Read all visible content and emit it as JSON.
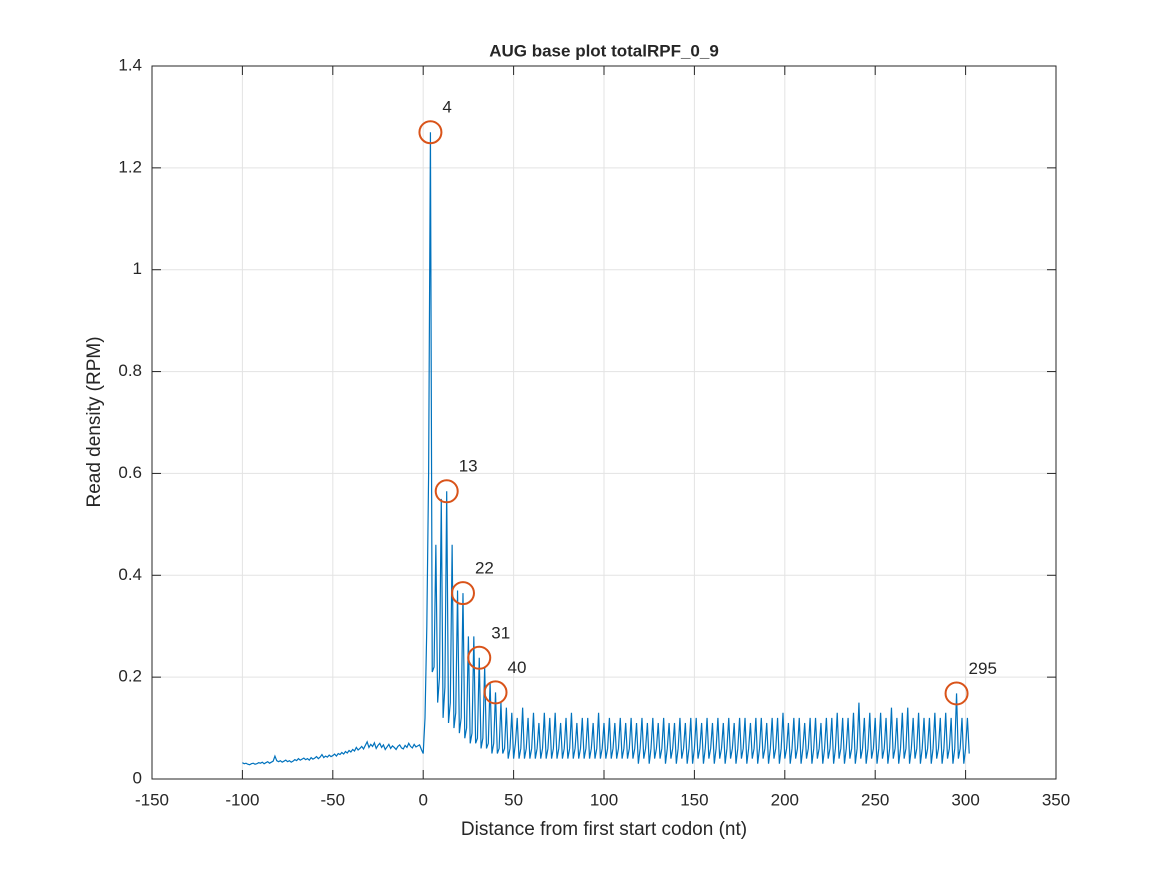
{
  "chart_data": {
    "type": "line",
    "title": "AUG base plot totalRPF_0_9",
    "xlabel": "Distance from first start codon (nt)",
    "ylabel": "Read density (RPM)",
    "xlim": [
      -150,
      350
    ],
    "xticks": [
      -150,
      -100,
      -50,
      0,
      50,
      100,
      150,
      200,
      250,
      300,
      350
    ],
    "ylim": [
      0,
      1.4
    ],
    "yticks": [
      0,
      0.2,
      0.4,
      0.6,
      0.8,
      1,
      1.2,
      1.4
    ],
    "grid": true,
    "series": [
      {
        "color": "#0072bd",
        "x": [
          -100,
          -99,
          -98,
          -97,
          -96,
          -95,
          -94,
          -93,
          -92,
          -91,
          -90,
          -89,
          -88,
          -87,
          -86,
          -85,
          -84,
          -83,
          -82,
          -81,
          -80,
          -79,
          -78,
          -77,
          -76,
          -75,
          -74,
          -73,
          -72,
          -71,
          -70,
          -69,
          -68,
          -67,
          -66,
          -65,
          -64,
          -63,
          -62,
          -61,
          -60,
          -59,
          -58,
          -57,
          -56,
          -55,
          -54,
          -53,
          -52,
          -51,
          -50,
          -49,
          -48,
          -47,
          -46,
          -45,
          -44,
          -43,
          -42,
          -41,
          -40,
          -39,
          -38,
          -37,
          -36,
          -35,
          -34,
          -33,
          -32,
          -31,
          -30,
          -29,
          -28,
          -27,
          -26,
          -25,
          -24,
          -23,
          -22,
          -21,
          -20,
          -19,
          -18,
          -17,
          -16,
          -15,
          -14,
          -13,
          -12,
          -11,
          -10,
          -9,
          -8,
          -7,
          -6,
          -5,
          -4,
          -3,
          -2,
          -1,
          0,
          1,
          2,
          3,
          4,
          5,
          6,
          7,
          8,
          9,
          10,
          11,
          12,
          13,
          14,
          15,
          16,
          17,
          18,
          19,
          20,
          21,
          22,
          23,
          24,
          25,
          26,
          27,
          28,
          29,
          30,
          31,
          32,
          33,
          34,
          35,
          36,
          37,
          38,
          39,
          40,
          41,
          42,
          43,
          44,
          45,
          46,
          47,
          48,
          49,
          50,
          51,
          52,
          53,
          54,
          55,
          56,
          57,
          58,
          59,
          60,
          61,
          62,
          63,
          64,
          65,
          66,
          67,
          68,
          69,
          70,
          71,
          72,
          73,
          74,
          75,
          76,
          77,
          78,
          79,
          80,
          81,
          82,
          83,
          84,
          85,
          86,
          87,
          88,
          89,
          90,
          91,
          92,
          93,
          94,
          95,
          96,
          97,
          98,
          99,
          100,
          101,
          102,
          103,
          104,
          105,
          106,
          107,
          108,
          109,
          110,
          111,
          112,
          113,
          114,
          115,
          116,
          117,
          118,
          119,
          120,
          121,
          122,
          123,
          124,
          125,
          126,
          127,
          128,
          129,
          130,
          131,
          132,
          133,
          134,
          135,
          136,
          137,
          138,
          139,
          140,
          141,
          142,
          143,
          144,
          145,
          146,
          147,
          148,
          149,
          150,
          151,
          152,
          153,
          154,
          155,
          156,
          157,
          158,
          159,
          160,
          161,
          162,
          163,
          164,
          165,
          166,
          167,
          168,
          169,
          170,
          171,
          172,
          173,
          174,
          175,
          176,
          177,
          178,
          179,
          180,
          181,
          182,
          183,
          184,
          185,
          186,
          187,
          188,
          189,
          190,
          191,
          192,
          193,
          194,
          195,
          196,
          197,
          198,
          199,
          200,
          201,
          202,
          203,
          204,
          205,
          206,
          207,
          208,
          209,
          210,
          211,
          212,
          213,
          214,
          215,
          216,
          217,
          218,
          219,
          220,
          221,
          222,
          223,
          224,
          225,
          226,
          227,
          228,
          229,
          230,
          231,
          232,
          233,
          234,
          235,
          236,
          237,
          238,
          239,
          240,
          241,
          242,
          243,
          244,
          245,
          246,
          247,
          248,
          249,
          250,
          251,
          252,
          253,
          254,
          255,
          256,
          257,
          258,
          259,
          260,
          261,
          262,
          263,
          264,
          265,
          266,
          267,
          268,
          269,
          270,
          271,
          272,
          273,
          274,
          275,
          276,
          277,
          278,
          279,
          280,
          281,
          282,
          283,
          284,
          285,
          286,
          287,
          288,
          289,
          290,
          291,
          292,
          293,
          294,
          295,
          296,
          297,
          298,
          299,
          300,
          301,
          302
        ],
        "values": [
          0.032,
          0.03,
          0.031,
          0.029,
          0.028,
          0.03,
          0.031,
          0.029,
          0.03,
          0.032,
          0.031,
          0.033,
          0.03,
          0.032,
          0.034,
          0.031,
          0.033,
          0.035,
          0.045,
          0.036,
          0.034,
          0.036,
          0.033,
          0.035,
          0.037,
          0.034,
          0.036,
          0.033,
          0.035,
          0.038,
          0.036,
          0.04,
          0.037,
          0.039,
          0.041,
          0.038,
          0.04,
          0.037,
          0.042,
          0.039,
          0.041,
          0.044,
          0.04,
          0.043,
          0.048,
          0.042,
          0.045,
          0.043,
          0.047,
          0.044,
          0.046,
          0.049,
          0.045,
          0.05,
          0.048,
          0.052,
          0.049,
          0.054,
          0.051,
          0.056,
          0.053,
          0.058,
          0.055,
          0.062,
          0.057,
          0.06,
          0.064,
          0.059,
          0.066,
          0.073,
          0.062,
          0.068,
          0.064,
          0.071,
          0.06,
          0.066,
          0.07,
          0.062,
          0.067,
          0.058,
          0.063,
          0.068,
          0.06,
          0.065,
          0.062,
          0.058,
          0.064,
          0.067,
          0.061,
          0.059,
          0.066,
          0.062,
          0.07,
          0.064,
          0.061,
          0.068,
          0.063,
          0.065,
          0.067,
          0.058,
          0.05,
          0.12,
          0.3,
          0.6,
          1.27,
          0.21,
          0.22,
          0.46,
          0.15,
          0.2,
          0.55,
          0.12,
          0.18,
          0.565,
          0.11,
          0.15,
          0.46,
          0.1,
          0.13,
          0.37,
          0.09,
          0.12,
          0.365,
          0.08,
          0.1,
          0.28,
          0.07,
          0.09,
          0.28,
          0.07,
          0.08,
          0.238,
          0.06,
          0.08,
          0.22,
          0.06,
          0.07,
          0.19,
          0.05,
          0.07,
          0.17,
          0.05,
          0.06,
          0.15,
          0.05,
          0.06,
          0.14,
          0.04,
          0.06,
          0.13,
          0.04,
          0.07,
          0.12,
          0.04,
          0.06,
          0.14,
          0.04,
          0.06,
          0.12,
          0.04,
          0.06,
          0.13,
          0.04,
          0.06,
          0.11,
          0.04,
          0.06,
          0.13,
          0.04,
          0.06,
          0.12,
          0.04,
          0.06,
          0.13,
          0.04,
          0.06,
          0.11,
          0.04,
          0.06,
          0.12,
          0.04,
          0.06,
          0.13,
          0.04,
          0.06,
          0.11,
          0.04,
          0.06,
          0.12,
          0.04,
          0.06,
          0.12,
          0.04,
          0.06,
          0.11,
          0.04,
          0.06,
          0.13,
          0.04,
          0.06,
          0.11,
          0.04,
          0.06,
          0.12,
          0.04,
          0.06,
          0.11,
          0.04,
          0.06,
          0.12,
          0.04,
          0.06,
          0.11,
          0.04,
          0.06,
          0.12,
          0.04,
          0.06,
          0.11,
          0.03,
          0.06,
          0.12,
          0.04,
          0.06,
          0.11,
          0.03,
          0.06,
          0.12,
          0.04,
          0.06,
          0.11,
          0.04,
          0.06,
          0.12,
          0.03,
          0.06,
          0.11,
          0.04,
          0.06,
          0.11,
          0.03,
          0.06,
          0.12,
          0.04,
          0.06,
          0.11,
          0.03,
          0.06,
          0.12,
          0.03,
          0.06,
          0.12,
          0.04,
          0.06,
          0.11,
          0.03,
          0.06,
          0.12,
          0.04,
          0.06,
          0.11,
          0.03,
          0.06,
          0.12,
          0.04,
          0.06,
          0.11,
          0.03,
          0.06,
          0.12,
          0.04,
          0.06,
          0.11,
          0.03,
          0.06,
          0.12,
          0.04,
          0.06,
          0.12,
          0.03,
          0.06,
          0.11,
          0.04,
          0.06,
          0.12,
          0.03,
          0.06,
          0.12,
          0.04,
          0.06,
          0.11,
          0.03,
          0.06,
          0.12,
          0.04,
          0.06,
          0.12,
          0.03,
          0.06,
          0.13,
          0.04,
          0.06,
          0.11,
          0.03,
          0.06,
          0.12,
          0.04,
          0.06,
          0.12,
          0.03,
          0.06,
          0.11,
          0.04,
          0.06,
          0.12,
          0.03,
          0.06,
          0.12,
          0.04,
          0.06,
          0.11,
          0.03,
          0.06,
          0.12,
          0.04,
          0.06,
          0.12,
          0.03,
          0.06,
          0.13,
          0.04,
          0.06,
          0.12,
          0.03,
          0.06,
          0.12,
          0.04,
          0.06,
          0.13,
          0.03,
          0.06,
          0.15,
          0.04,
          0.06,
          0.12,
          0.03,
          0.06,
          0.13,
          0.04,
          0.06,
          0.12,
          0.03,
          0.06,
          0.13,
          0.04,
          0.06,
          0.12,
          0.03,
          0.06,
          0.14,
          0.04,
          0.06,
          0.12,
          0.03,
          0.06,
          0.13,
          0.04,
          0.06,
          0.14,
          0.03,
          0.06,
          0.12,
          0.04,
          0.06,
          0.13,
          0.03,
          0.06,
          0.12,
          0.04,
          0.06,
          0.12,
          0.03,
          0.06,
          0.13,
          0.04,
          0.06,
          0.12,
          0.03,
          0.06,
          0.13,
          0.04,
          0.06,
          0.12,
          0.03,
          0.06,
          0.168,
          0.04,
          0.06,
          0.12,
          0.03,
          0.06,
          0.12,
          0.05
        ]
      }
    ],
    "peaks": {
      "color": "#d95319",
      "points": [
        {
          "x": 4,
          "y": 1.27
        },
        {
          "x": 13,
          "y": 0.565
        },
        {
          "x": 22,
          "y": 0.365
        },
        {
          "x": 31,
          "y": 0.238
        },
        {
          "x": 40,
          "y": 0.17
        },
        {
          "x": 295,
          "y": 0.168
        }
      ]
    }
  }
}
